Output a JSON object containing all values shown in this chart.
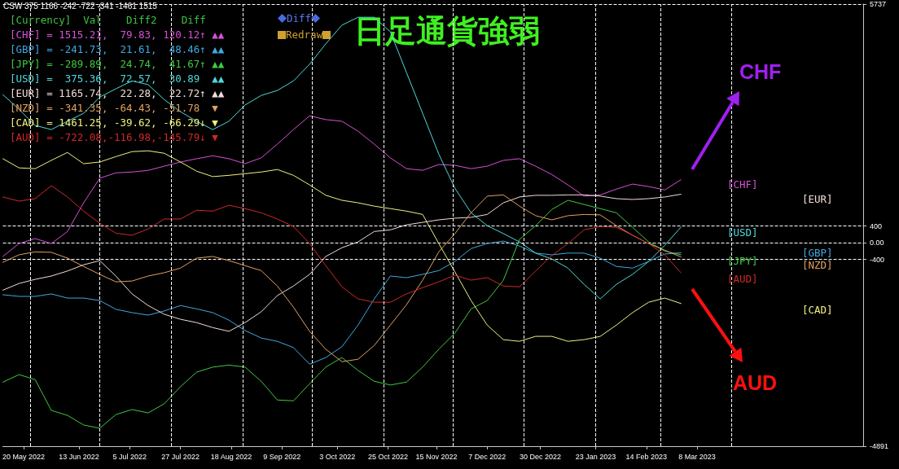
{
  "chart_data": {
    "type": "line",
    "title": "日足通貨強弱",
    "x": [
      "2022-05-11",
      "2022-05-18",
      "2022-05-25",
      "2022-06-01",
      "2022-06-08",
      "2022-06-15",
      "2022-06-22",
      "2022-06-29",
      "2022-07-06",
      "2022-07-13",
      "2022-07-20",
      "2022-07-27",
      "2022-08-03",
      "2022-08-10",
      "2022-08-17",
      "2022-08-24",
      "2022-08-31",
      "2022-09-07",
      "2022-09-14",
      "2022-09-21",
      "2022-09-28",
      "2022-10-05",
      "2022-10-12",
      "2022-10-19",
      "2022-10-26",
      "2022-11-02",
      "2022-11-09",
      "2022-11-16",
      "2022-11-23",
      "2022-11-30",
      "2022-12-07",
      "2022-12-14",
      "2022-12-21",
      "2022-12-28",
      "2023-01-04",
      "2023-01-11",
      "2023-01-18",
      "2023-01-25",
      "2023-02-01",
      "2023-02-08",
      "2023-02-15",
      "2023-02-22",
      "2023-03-01"
    ],
    "series": [
      {
        "name": "[CHF]",
        "color": "#d850d8",
        "values": [
          -330,
          -20,
          100,
          -20,
          270,
          960,
          1550,
          1680,
          1700,
          1740,
          1840,
          1940,
          2020,
          2090,
          2020,
          1900,
          2040,
          2370,
          2720,
          3050,
          2960,
          2920,
          2680,
          2370,
          2040,
          1780,
          1740,
          1880,
          1860,
          1780,
          1840,
          1980,
          2020,
          1840,
          1640,
          1390,
          1120,
          1150,
          1290,
          1410,
          1350,
          1270,
          1515
        ]
      },
      {
        "name": "[GBP]",
        "color": "#40a8e0",
        "values": [
          -1250,
          -1290,
          -1290,
          -1230,
          -1330,
          -1330,
          -1390,
          -1600,
          -1680,
          -1740,
          -1640,
          -1510,
          -1590,
          -1680,
          -1860,
          -2110,
          -2290,
          -2370,
          -2520,
          -2920,
          -2760,
          -2500,
          -1980,
          -1350,
          -800,
          -840,
          -760,
          -670,
          -450,
          -140,
          -20,
          40,
          -80,
          -250,
          -290,
          -250,
          -250,
          -370,
          -570,
          -610,
          -450,
          -270,
          -242
        ]
      },
      {
        "name": "[JPY]",
        "color": "#40c840",
        "values": [
          -3350,
          -3170,
          -3290,
          -4030,
          -4150,
          -4380,
          -4460,
          -4130,
          -4010,
          -4090,
          -3870,
          -3460,
          -3110,
          -2990,
          -2940,
          -2990,
          -3330,
          -3780,
          -3800,
          -3390,
          -2990,
          -2760,
          -3070,
          -3330,
          -3420,
          -3350,
          -2990,
          -2560,
          -2170,
          -1590,
          -1390,
          -900,
          80,
          410,
          800,
          1020,
          920,
          820,
          720,
          370,
          20,
          -200,
          -290
        ]
      },
      {
        "name": "[USD]",
        "color": "#50d8d8",
        "values": [
          3560,
          3210,
          2820,
          2720,
          2920,
          3110,
          3500,
          3700,
          3890,
          3800,
          3440,
          3150,
          2920,
          2720,
          2920,
          3310,
          3540,
          3660,
          3890,
          4290,
          4780,
          5230,
          5420,
          5420,
          5070,
          4090,
          3110,
          2130,
          1310,
          720,
          410,
          220,
          20,
          -250,
          -390,
          -610,
          -1000,
          -1350,
          -1000,
          -760,
          -450,
          -60,
          375
        ]
      },
      {
        "name": "[EUR]",
        "color": "#f0dcd8",
        "values": [
          -1140,
          -980,
          -880,
          -800,
          -680,
          -530,
          -430,
          -800,
          -1230,
          -1510,
          -1720,
          -1840,
          -1920,
          -2040,
          -2130,
          -1920,
          -1660,
          -1270,
          -1040,
          -760,
          -330,
          -120,
          20,
          270,
          310,
          430,
          490,
          550,
          590,
          610,
          680,
          960,
          1100,
          1140,
          1140,
          1150,
          1150,
          1120,
          1060,
          1040,
          1060,
          1100,
          1166
        ]
      },
      {
        "name": "[NZD]",
        "color": "#e0a060",
        "values": [
          -470,
          -290,
          -220,
          -230,
          -370,
          -570,
          -760,
          -940,
          -920,
          -800,
          -720,
          -610,
          -370,
          -330,
          -430,
          -550,
          -670,
          -1040,
          -1550,
          -2130,
          -2560,
          -2860,
          -2800,
          -2470,
          -1980,
          -1490,
          -900,
          -220,
          220,
          720,
          1120,
          1150,
          880,
          650,
          550,
          650,
          680,
          670,
          410,
          180,
          -20,
          -180,
          -341
        ]
      },
      {
        "name": "[CAD]",
        "color": "#f0f080",
        "values": [
          2020,
          1800,
          1780,
          1980,
          2170,
          1900,
          1940,
          2070,
          2190,
          2210,
          2150,
          1940,
          1720,
          1590,
          1620,
          1660,
          1700,
          1760,
          1620,
          1390,
          1140,
          1020,
          960,
          880,
          820,
          760,
          680,
          -20,
          -700,
          -1390,
          -1980,
          -2330,
          -2370,
          -2250,
          -2250,
          -2370,
          -2330,
          -2250,
          -1980,
          -1680,
          -1430,
          -1330,
          -1461
        ]
      },
      {
        "name": "[AUD]",
        "color": "#d02828",
        "values": [
          1100,
          1000,
          1060,
          1370,
          1100,
          760,
          470,
          230,
          180,
          330,
          570,
          570,
          780,
          760,
          900,
          820,
          720,
          570,
          390,
          -20,
          -550,
          -1060,
          -1350,
          -1430,
          -1430,
          -1230,
          -1080,
          -940,
          -780,
          -900,
          -840,
          -1040,
          -1060,
          -680,
          -310,
          -20,
          310,
          390,
          370,
          180,
          -20,
          -290,
          -722
        ]
      }
    ],
    "xlim": [
      "2022-05-11",
      "2023-05-19"
    ],
    "xticks": [
      {
        "value": "2022-05-20",
        "label": "20 May 2022"
      },
      {
        "value": "2022-06-13",
        "label": "13 Jun 2022"
      },
      {
        "value": "2022-07-05",
        "label": "5 Jul 2022"
      },
      {
        "value": "2022-07-27",
        "label": "27 Jul 2022"
      },
      {
        "value": "2022-08-18",
        "label": "18 Aug 2022"
      },
      {
        "value": "2022-09-09",
        "label": "9 Sep 2022"
      },
      {
        "value": "2022-10-03",
        "label": "3 Oct 2022"
      },
      {
        "value": "2022-10-25",
        "label": "25 Oct 2022"
      },
      {
        "value": "2022-11-15",
        "label": "15 Nov 2022"
      },
      {
        "value": "2022-12-07",
        "label": "7 Dec 2022"
      },
      {
        "value": "2022-12-30",
        "label": "30 Dec 2022"
      },
      {
        "value": "2023-01-23",
        "label": "23 Jan 2023"
      },
      {
        "value": "2023-02-14",
        "label": "14 Feb 2023"
      },
      {
        "value": "2023-03-08",
        "label": "8 Mar 2023"
      }
    ],
    "ylim": [
      -4891,
      5737
    ],
    "yticks": [
      5737,
      400,
      {
        "value": 0,
        "label": "0.00"
      },
      -400,
      -4891
    ],
    "grid": "y",
    "legend": false,
    "marker": "none",
    "line_style": "solid",
    "ref_lines": [
      {
        "axis": "x",
        "value": "2022-05-23",
        "color": "#ffffff",
        "line_style": "dashed"
      },
      {
        "axis": "x",
        "value": "2022-06-22",
        "color": "#ffffff",
        "line_style": "dashed"
      },
      {
        "axis": "x",
        "value": "2022-07-23",
        "color": "#ffffff",
        "line_style": "dashed"
      },
      {
        "axis": "x",
        "value": "2022-08-23",
        "color": "#ffffff",
        "line_style": "dashed"
      },
      {
        "axis": "x",
        "value": "2022-09-22",
        "color": "#ffffff",
        "line_style": "dashed"
      },
      {
        "axis": "x",
        "value": "2022-10-23",
        "color": "#ffffff",
        "line_style": "dashed"
      },
      {
        "axis": "x",
        "value": "2022-11-22",
        "color": "#ffffff",
        "line_style": "dashed"
      },
      {
        "axis": "x",
        "value": "2022-12-23",
        "color": "#ffffff",
        "line_style": "dashed"
      },
      {
        "axis": "x",
        "value": "2023-01-23",
        "color": "#ffffff",
        "line_style": "dashed"
      },
      {
        "axis": "x",
        "value": "2023-02-20",
        "color": "#ffffff",
        "line_style": "dashed"
      },
      {
        "axis": "x",
        "value": "2023-03-23",
        "color": "#ffffff",
        "line_style": "dashed"
      }
    ],
    "annotations": [
      "CSW 375 1166 -242 -722 -341 -1461 1515",
      "[Currency]  Val    Diff2    Diff",
      "[CHF] = 1515.21,  79.83, 120.12↑ ▲▲",
      "[GBP] = -241.73,  21.61,  48.46↑ ▲▲",
      "[JPY] = -289.89,  24.74,  41.67↑ ▲▲",
      "[USD] =  375.36,  72.57,  30.89  ▲▲",
      "[EUR] = 1165.74,  22.28,  22.72↑ ▲▲",
      "[NZD] = -341.35, -64.43, -51.78  ▼",
      "[CAD] = 1461.25, -39.62, -66.29↓ ▼",
      "[AUD] = -722.08,-116.98,-145.79↓ ▼",
      "Diff",
      "Redraw",
      "CHF",
      "AUD"
    ]
  }
}
